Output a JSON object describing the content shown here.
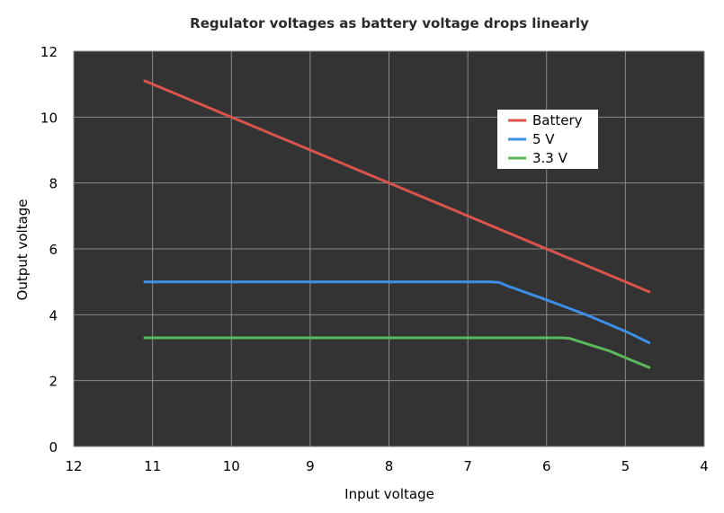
{
  "chart_data": {
    "type": "line",
    "title": "Regulator voltages as battery voltage drops linearly",
    "xlabel": "Input voltage",
    "ylabel": "Output voltage",
    "xlim": [
      12,
      4
    ],
    "ylim": [
      0,
      12
    ],
    "x_reversed": true,
    "xticks": [
      "12",
      "11",
      "10",
      "9",
      "8",
      "7",
      "6",
      "5",
      "4"
    ],
    "yticks": [
      "0",
      "2",
      "4",
      "6",
      "8",
      "10",
      "12"
    ],
    "grid": true,
    "legend_position": "top-right",
    "background": "#333333",
    "series": [
      {
        "name": "Battery",
        "color": "#d9534f",
        "points": [
          [
            11.1,
            11.1
          ],
          [
            4.7,
            4.7
          ]
        ]
      },
      {
        "name": "5 V",
        "color": "#3d8fe6",
        "points": [
          [
            11.1,
            5.0
          ],
          [
            6.7,
            5.0
          ],
          [
            6.6,
            4.98
          ],
          [
            6.5,
            4.88
          ],
          [
            6.0,
            4.45
          ],
          [
            5.5,
            4.0
          ],
          [
            5.0,
            3.5
          ],
          [
            4.7,
            3.15
          ]
        ]
      },
      {
        "name": "3.3 V",
        "color": "#5cb85c",
        "points": [
          [
            11.1,
            3.3
          ],
          [
            5.8,
            3.3
          ],
          [
            5.7,
            3.28
          ],
          [
            5.6,
            3.2
          ],
          [
            5.2,
            2.9
          ],
          [
            4.9,
            2.6
          ],
          [
            4.7,
            2.4
          ]
        ]
      }
    ]
  }
}
